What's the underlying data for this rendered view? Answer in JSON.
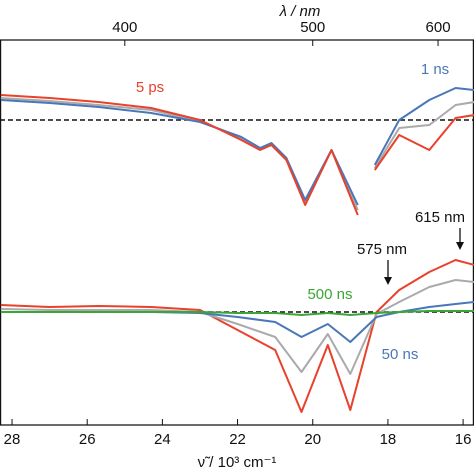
{
  "chart_data": [
    {
      "type": "line",
      "x2label": "λ / nm",
      "x2ticks": [
        400,
        500,
        600
      ],
      "xlim": [
        28.32,
        15.71
      ],
      "ylim": [
        -1,
        0.8
      ],
      "x": [
        28.3,
        27.0,
        25.7,
        24.3,
        23.0,
        21.9,
        21.4,
        21.1,
        20.7,
        20.2,
        19.5,
        18.8,
        18.6,
        18.35,
        17.7,
        16.9,
        16.2,
        15.7
      ],
      "series": [
        {
          "color": "#aaaaaa",
          "values": [
            0.22,
            0.19,
            0.15,
            0.1,
            -0.01,
            -0.18,
            -0.29,
            -0.24,
            -0.39,
            -0.82,
            -0.3,
            -0.9,
            null,
            -0.48,
            -0.08,
            -0.05,
            0.15,
            0.18
          ]
        },
        {
          "name": "1 ns",
          "color": "#4a77b9",
          "values": [
            0.2,
            0.17,
            0.13,
            0.07,
            -0.02,
            -0.17,
            -0.28,
            -0.23,
            -0.38,
            -0.8,
            -0.3,
            -0.85,
            null,
            -0.45,
            0.0,
            0.2,
            0.32,
            0.3
          ]
        },
        {
          "name": "5 ps",
          "color": "#e8412c",
          "values": [
            0.25,
            0.22,
            0.18,
            0.12,
            0.0,
            -0.2,
            -0.3,
            -0.25,
            -0.4,
            -0.85,
            -0.3,
            -0.95,
            null,
            -0.5,
            -0.15,
            -0.3,
            0.02,
            0.05
          ]
        }
      ]
    },
    {
      "type": "line",
      "xlabel": "ν̃ / 10³ cm⁻¹",
      "xticks": [
        28,
        26,
        24,
        22,
        20,
        18,
        16
      ],
      "xlim": [
        28.32,
        15.71
      ],
      "ylim": [
        -1.1,
        0.7
      ],
      "x": [
        28.3,
        27.0,
        25.7,
        24.3,
        23.0,
        22.0,
        21.0,
        20.3,
        19.6,
        19.0,
        18.3,
        17.7,
        16.9,
        16.2,
        15.7
      ],
      "series": [
        {
          "color": "#e8412c",
          "values": [
            0.07,
            0.05,
            0.06,
            0.05,
            0.02,
            -0.18,
            -0.38,
            -1.0,
            -0.33,
            -0.98,
            0.0,
            0.22,
            0.4,
            0.52,
            0.47
          ]
        },
        {
          "color": "#aaaaaa",
          "values": [
            0.03,
            0.02,
            0.02,
            0.02,
            0.0,
            -0.12,
            -0.25,
            -0.6,
            -0.22,
            -0.62,
            -0.02,
            0.1,
            0.25,
            0.32,
            0.3
          ]
        },
        {
          "name": "50 ns",
          "color": "#4a77b9",
          "values": [
            0.0,
            0.0,
            0.0,
            0.0,
            -0.01,
            -0.05,
            -0.1,
            -0.25,
            -0.12,
            -0.3,
            -0.05,
            0.0,
            0.05,
            0.08,
            0.1
          ]
        },
        {
          "name": "500 ns",
          "color": "#3aa635",
          "values": [
            0,
            0,
            0,
            0,
            0,
            -0.01,
            -0.01,
            -0.03,
            -0.01,
            -0.03,
            -0.01,
            0,
            0.01,
            0.01,
            0.01
          ]
        }
      ],
      "annotations": [
        "575 nm",
        "615 nm"
      ]
    }
  ]
}
